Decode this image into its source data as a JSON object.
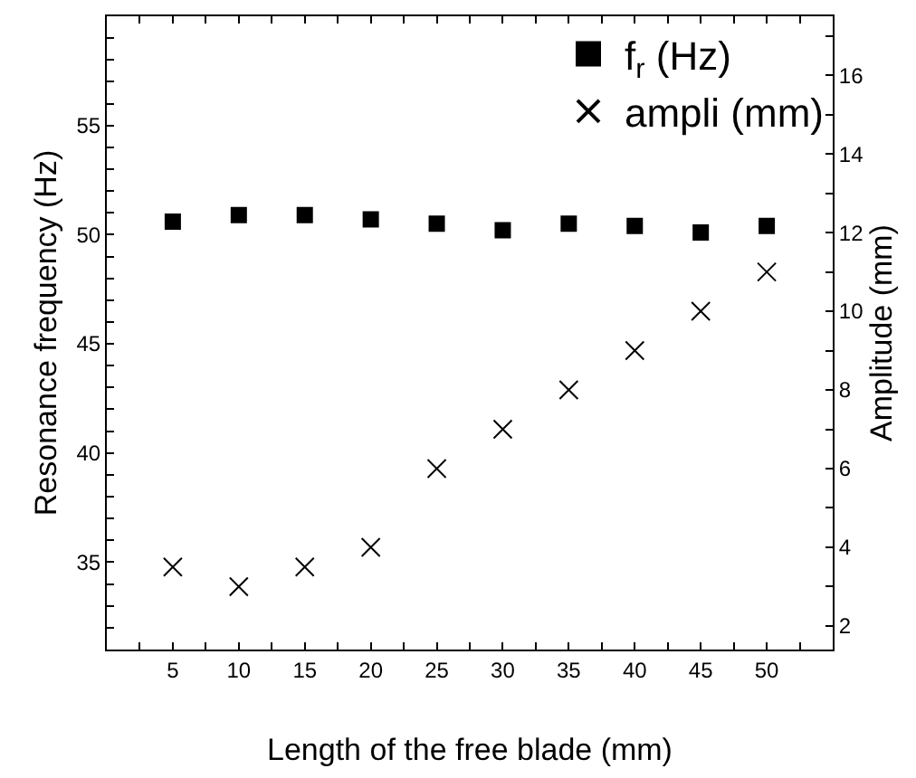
{
  "chart_data": {
    "type": "scatter",
    "xlabel": "Length of the free blade (mm)",
    "ylabel": "Resonance frequency (Hz)",
    "y2label": "Amplitude (mm)",
    "x": [
      5,
      10,
      15,
      20,
      25,
      30,
      35,
      40,
      45,
      50
    ],
    "series": [
      {
        "name": "f$_{r}$ (Hz)",
        "color": "#000000",
        "marker": "square",
        "values": [
          50.6,
          50.9,
          50.9,
          50.7,
          50.5,
          50.2,
          50.5,
          50.4,
          50.1,
          50.4
        ]
      },
      {
        "name": "ampli (mm)",
        "color": "#000000",
        "marker": "cross",
        "axis": "y2",
        "values": [
          3.5,
          3,
          3.5,
          4,
          6,
          7,
          8,
          9,
          10,
          11
        ]
      }
    ],
    "xlim": [
      0,
      55
    ],
    "xticks": [
      {
        "value": 2.5,
        "label": null
      },
      5,
      {
        "value": 7.5,
        "label": null
      },
      10,
      {
        "value": 12.5,
        "label": null
      },
      15,
      {
        "value": 17.5,
        "label": null
      },
      20,
      {
        "value": 22.5,
        "label": null
      },
      25,
      {
        "value": 27.5,
        "label": null
      },
      30,
      {
        "value": 32.5,
        "label": null
      },
      35,
      {
        "value": 37.5,
        "label": null
      },
      40,
      {
        "value": 42.5,
        "label": null
      },
      45,
      {
        "value": 47.5,
        "label": null
      },
      50,
      {
        "value": 52.5,
        "label": null
      }
    ],
    "ylim": [
      31,
      60
    ],
    "yticks": [
      {
        "value": 32,
        "label": null
      },
      {
        "value": 33,
        "label": null
      },
      {
        "value": 34,
        "label": null
      },
      35,
      {
        "value": 36,
        "label": null
      },
      {
        "value": 37,
        "label": null
      },
      {
        "value": 38,
        "label": null
      },
      {
        "value": 39,
        "label": null
      },
      40,
      {
        "value": 41,
        "label": null
      },
      {
        "value": 42,
        "label": null
      },
      {
        "value": 43,
        "label": null
      },
      {
        "value": 44,
        "label": null
      },
      45,
      {
        "value": 46,
        "label": null
      },
      {
        "value": 47,
        "label": null
      },
      {
        "value": 48,
        "label": null
      },
      {
        "value": 49,
        "label": null
      },
      50,
      {
        "value": 51,
        "label": null
      },
      {
        "value": 52,
        "label": null
      },
      {
        "value": 53,
        "label": null
      },
      {
        "value": 54,
        "label": null
      },
      55,
      {
        "value": 56,
        "label": null
      },
      {
        "value": 57,
        "label": null
      },
      {
        "value": 58,
        "label": null
      },
      {
        "value": 59,
        "label": null
      }
    ],
    "y2lim": [
      1.4,
      17.5
    ],
    "y2ticks": [
      2,
      {
        "value": 3,
        "label": null
      },
      4,
      {
        "value": 5,
        "label": null
      },
      6,
      {
        "value": 7,
        "label": null
      },
      8,
      {
        "value": 9,
        "label": null
      },
      10,
      {
        "value": 11,
        "label": null
      },
      12,
      {
        "value": 13,
        "label": null
      },
      14,
      {
        "value": 15,
        "label": null
      },
      16,
      {
        "value": 17,
        "label": null
      }
    ],
    "grid": false,
    "legend": "top right"
  }
}
